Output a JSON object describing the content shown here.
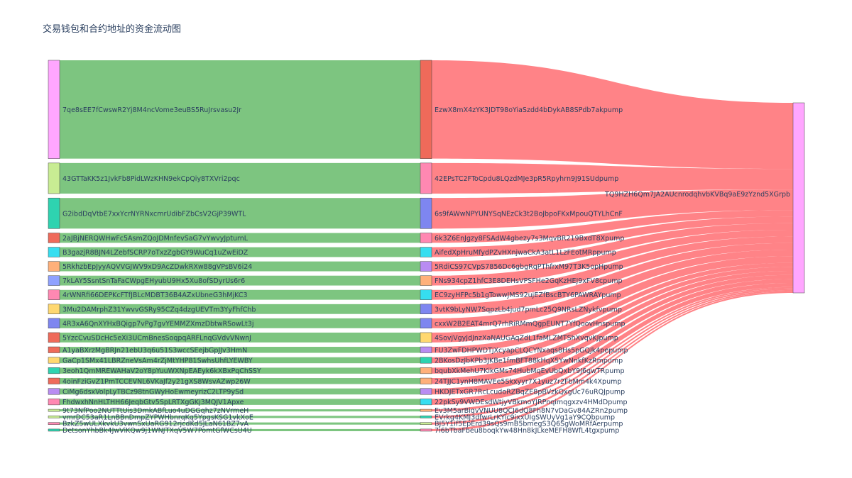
{
  "chart_data": {
    "type": "sankey",
    "title": "交易钱包和合约地址的资金流动图",
    "flow_color": "#66bb6a",
    "target_flow_color": "#ff5a5f",
    "sources": [
      {
        "label": "7qe8sEE7fCwswR2Yj8M4ncVome3euBS5RuJrsvasu2Jr",
        "color": "#ffa6ff",
        "value": 9.0
      },
      {
        "label": "43GTTaKK5z1JvkFb8PidLWzKHN9ekCpQiy8TXVri2pqc",
        "color": "#c8ec93",
        "value": 2.8
      },
      {
        "label": "G2ibdDqVtbE7xxYcrNYRNxcmrUdibFZbCsV2GjP39WTL",
        "color": "#2ed3b0",
        "value": 2.8
      },
      {
        "label": "2aJBjNERQWHwFc5AsmZQoJDMnfevSaG7vYwvyJpturnL",
        "color": "#ef6a5a",
        "value": 0.9
      },
      {
        "label": "B3gazjR8BJN4LZebfSCRP7oTxzZgbGY9WuCq1uZwEiDZ",
        "color": "#36def0",
        "value": 0.9
      },
      {
        "label": "5RkhzbEpJyyAQVVGJWV9xD9AcZDwkRXw88gVPsBV6i24",
        "color": "#ffb07a",
        "value": 0.9
      },
      {
        "label": "7kLAY5SsntSnTaFaCWpgEHyubU9Hx5Xu8ofSDyrUs6r6",
        "color": "#8fa1ff",
        "value": 0.9
      },
      {
        "label": "4rWNRfi66DEPKcFTfJBLcMDBT36B4AZxUbneG3hMjKC3",
        "color": "#ff88b2",
        "value": 0.9
      },
      {
        "label": "3Mu2DAMrphZ31YwvvGSRy95CZq4dzgUEVTm3YyFhfChb",
        "color": "#ffd870",
        "value": 0.9
      },
      {
        "label": "4R3xA6QnXYHxBQigp7vPg7gvYEMMZXmzDbtwRSowLt3j",
        "color": "#7e86f0",
        "value": 0.9
      },
      {
        "label": "5YzcCvuSDcHc5eXi3UCmBnesSoqpqARFLnqGVdvVNwnJ",
        "color": "#ef6a5a",
        "value": 0.9
      },
      {
        "label": "A1yaBXrzMgBRJn21ebU3q6u51S3wccSEejbGpJJv3HmN",
        "color": "#ef6a5a",
        "value": 0.55
      },
      {
        "label": "GaCp1SMx41LBRZneVsAm4rZjMtYHP81SwhsUhfLYEWBY",
        "color": "#ffd870",
        "value": 0.55
      },
      {
        "label": "3eoh1QmMREWAHaV2oY8pYuuWXNpEAEyk6kXBxPqChSSY",
        "color": "#2ed3b0",
        "value": 0.55
      },
      {
        "label": "4oinFziGvZ1PmTCCEVNL6VKaJf2y21gXS8WsvAZwp26W",
        "color": "#ef6a5a",
        "value": 0.55
      },
      {
        "label": "CiMg6dsxVolpLyTBCz98tnGWyHoEwmeyrizC2LTP9ySd",
        "color": "#b98cf2",
        "value": 0.55
      },
      {
        "label": "FhdwxhNnHLTHH66JeqbGtv5SpLRTXgGKj3MQJV1Apxe",
        "color": "#ff88b2",
        "value": 0.55
      },
      {
        "label": "9t73NfPoo2NUTTtUis3DmkABfLuo4uDGGqhz7zNVrmeH",
        "color": "#c8ec93",
        "value": 0.2
      },
      {
        "label": "vmrDC53aR1LnBBnDmpZYPWHbnrqKq5YpgsKSG1vkXoE",
        "color": "#c8ec93",
        "value": 0.2
      },
      {
        "label": "BzkZ5wULXkvkU3vwnSxUaRG912rjcdKd5JLaN61BZ7vA",
        "color": "#ff88b2",
        "value": 0.2
      },
      {
        "label": "DetsonYhbBk4JwViKQw9j1WNJTXqV5W7PomtGfWCsU4U",
        "color": "#2ed3b0",
        "value": 0.2
      }
    ],
    "middles": [
      {
        "label": "EzwX8mX4zYK3JDT98oYiaSzdd4bDykAB8SPdb7akpump",
        "color": "#ef6a5a"
      },
      {
        "label": "42EPsTC2FToCpdu8LQzdMJe3pR5Rpyhrn9J91SUdpump",
        "color": "#ff88b2"
      },
      {
        "label": "6s9fAWwNPYUNYSqNEzCk3t2BoJbpoFKxMpouQTYLhCnF",
        "color": "#7e86f0"
      },
      {
        "label": "6k3Z6EnJgzy8FSAdW4gbezy7s3MqvBR219BxdT8Xpump",
        "color": "#ff88b2"
      },
      {
        "label": "AifedXpHruMfydPZvHXnjwaCkA3atL1LzFEotMRppump",
        "color": "#36def0"
      },
      {
        "label": "5RdiCS97CVpS7856Dc6gbgRqPThfrxM97T3K5opHpump",
        "color": "#b98cf2"
      },
      {
        "label": "FNs934cpZ1hfC3E8DEHsVPSFHe2GqKzHEJ9xFV8cpump",
        "color": "#ffb07a"
      },
      {
        "label": "EC9zyHFPc5b1gTowwJMS92ujEZfBscBTY6PAWRAYpump",
        "color": "#36def0"
      },
      {
        "label": "3vtK9bLyNW7SqpzLb4jud7pmLc25Q9NRsLZNykfvpump",
        "color": "#7e86f0"
      },
      {
        "label": "cxxW2B2EAT4mrQ7rhRiRMmQgpEUNT7YfQoovHnspump",
        "color": "#7e86f0"
      },
      {
        "label": "4SovjVgyJdJnzXaNAUGAqZdL1faMLZMTShXvqvKJpump",
        "color": "#ffd870"
      },
      {
        "label": "FU3ZwFDHPWDTjXcyapCLQCYNxaqs8Hs5pGQJk4pepump",
        "color": "#b98cf2"
      },
      {
        "label": "2BKosDzJbKPb3JKBe1fmBFT88kHqX5YwNnkfKzRmpump",
        "color": "#2ed3b0"
      },
      {
        "label": "bqubXkMehU7KikGMs74HubMqEvUbQxbY9J6gwTRpump",
        "color": "#ffb07a"
      },
      {
        "label": "24TJJC1ynH8MAVEe5Skxyyr7X1yuz7r2FbMm4k4Xpump",
        "color": "#ffb07a"
      },
      {
        "label": "HKDJETxGR7RcLcudoRZBqZE8pBVzkQxgUc76uRQJpump",
        "color": "#b98cf2"
      },
      {
        "label": "22pkSy9VWDEsdWtjyVBkmoYJRPnqimqgxzv4HMdDpump",
        "color": "#36def0"
      },
      {
        "label": "Ev3M5arBiqvVNUU8QCJ6dQ8Fh8N7vDaGv84AZRn2pump",
        "color": "#ffb07a"
      },
      {
        "label": "EVrkg4KMJ3dfwrLrKYic9jxxUIgSWUyVg1aY9CQbpump",
        "color": "#2ed3b0"
      },
      {
        "label": "BJ5Y1if5EpErd39sQs9mB5bmegS3Q6SgWoMRfAerpump",
        "color": "#c8ec93"
      },
      {
        "label": "7i6bTbaFbeu8boqkYw48Hn8kJLkeMEFH8WfL4tgxpump",
        "color": "#ff88b2"
      }
    ],
    "target": {
      "label": "TQ9HZH6Qm7JA2AUcnrodqhvbKVBq9aE9zYznd5XGrpb",
      "color": "#ffa6ff"
    }
  }
}
